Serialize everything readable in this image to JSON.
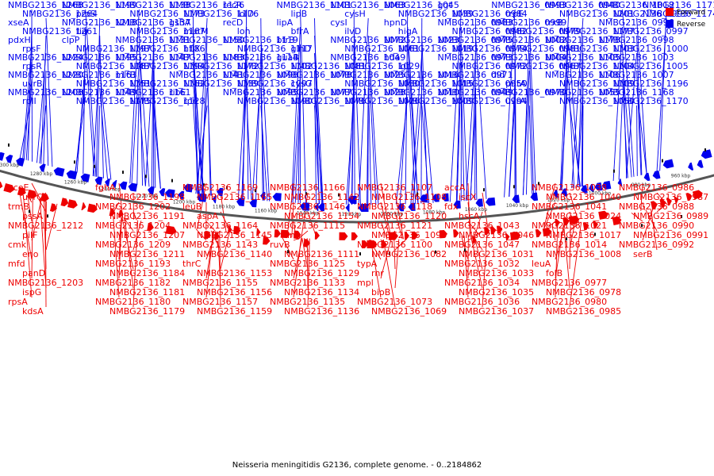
{
  "title": "Neisseria meningitidis G2136, complete genome. - 0..2184862",
  "colors": {
    "forward": "#ee0000",
    "reverse": "#0000ee",
    "backbone": "#555555"
  },
  "legend": [
    {
      "key": "forward",
      "label": "Forward"
    },
    {
      "key": "reverse",
      "label": "Reverse"
    }
  ],
  "ticks": [
    "1300 kbp",
    "1280 kbp",
    "1260 kbp",
    "1240 kbp",
    "1220 kbp",
    "1200 kbp",
    "1180 kbp",
    "1160 kbp",
    "1140 kbp",
    "1120 kbp",
    "1100 kbp",
    "1080 kbp",
    "1060 kbp",
    "1040 kbp",
    "1020 kbp",
    "1000 kbp",
    "980 kbp",
    "960 kbp"
  ],
  "reverse_labels": [
    "NMBG2136_1268",
    "NMBG2136_1264",
    "xseA",
    "NMBG2136_1261",
    "pdxH",
    "rpsF",
    "NMBG2136_1224",
    "rpsR",
    "NMBG2136_1220",
    "uvrB",
    "NMBG2136_1208",
    "rplI",
    "NMBG2136_1199",
    "proS",
    "NMBG2136_1218",
    "tig",
    "clpP",
    "NMBG2136_1197",
    "NMBG2136_1195",
    "NMBG2136_1187",
    "NMBG2136_1163",
    "NMBG2136_1151",
    "NMBG2136_1149",
    "NMBG2136_1175",
    "NMBG2136_1138",
    "NMBG2136_1173",
    "NMBG2136_1137",
    "NMBG2136_1167",
    "NMBG2136_1131",
    "NMBG2136_1186",
    "NMBG2136_1147",
    "NMBG2136_1194",
    "mltB",
    "NMBG2136_1162",
    "NMBG2136_1161",
    "NMBG2136_1128",
    "NMBG2136_1126",
    "NMBG2136_1176",
    "gshA",
    "mutM",
    "NMBG2136_1150",
    "hflX",
    "NMBG2136_1183",
    "NMBG2136_1172",
    "NMBG2136_1141",
    "NMBG2136_1139",
    "ribE",
    "rpe",
    "recR",
    "lolD",
    "recD",
    "lon",
    "NMBG2136_1119",
    "NMBG2136_1117",
    "NMBG2136_1114",
    "NMBG2136_1102",
    "NMBG2136_1098",
    "NMBG2136_1097",
    "NMBG2136_1095",
    "NMBG2136_1090",
    "NMBG2136_1101",
    "lipB",
    "lipA",
    "bfrA",
    "bfrB",
    "glnD",
    "guaB",
    "NMBG2136_1081",
    "NMBG2136_1078",
    "cysG",
    "NMBG2136_1077",
    "NMBG2136_1076",
    "NMBG2136_1063",
    "cysH",
    "cysI",
    "ilvD",
    "NMBG2136_1072",
    "NMBG2136_1061",
    "NMBG2136_1049",
    "NMBG2136_1029",
    "NMBG2136_1025",
    "NMBG2136_1030",
    "NMBG2136_1028",
    "NMBG2136_1026",
    "NMBG2136_1045",
    "NMBG2136_1039",
    "hpnD",
    "higA",
    "NMBG2136_1023",
    "NMBG2136_1019",
    "hda",
    "lgt",
    "NMBG2136_1016",
    "NMBG2136_1015",
    "NMBG2136_1010",
    "NMBG2136_1009",
    "ggt",
    "NMBG2136_0984",
    "NMBG2136_0983",
    "NMBG2136_0982",
    "NMBG2136_0975",
    "NMBG2136_0974",
    "NMBG2136_0973",
    "NMBG2136_0972",
    "NMBG2136_0971",
    "NMBG2136_0950",
    "NMBG2136_0949",
    "NMBG2136_0994",
    "NMBG2136_0993",
    "trpE",
    "NMBG2136_0999",
    "NMBG2136_0979",
    "NMBG2136_1002",
    "NMBG2136_0981",
    "NMBG2136_1004",
    "NMBG2136_0967",
    "dld",
    "pntA",
    "NMBG2136_0970",
    "uvrA",
    "NMBG2136_0940",
    "NMBG2136_1201",
    "trxB",
    "NMBG2136_1177",
    "NMBG2136_1178",
    "NMBG2136_1103",
    "NMBG2136_1105",
    "NMBG2136_1104",
    "NMBG2136_1106",
    "NMBG2136_1109",
    "NMBG2136_1055",
    "NMBG2136_1050",
    "NMBG2136_1018",
    "NMBG2136_0995",
    "NMBG2136_0996",
    "NMBG2136_0997",
    "NMBG2136_0998",
    "NMBG2136_1000",
    "NMBG2136_1003",
    "NMBG2136_1005",
    "NMBG2136_1007",
    "NMBG2136_1196",
    "NMBG2136_1168",
    "NMBG2136_1170",
    "NMBG2136_1171",
    "NMBG2136_1174"
  ],
  "forward_labels": [
    "aceE",
    "uvrC",
    "trmB",
    "pssA",
    "NMBG2136_1212",
    "pilF",
    "cmk",
    "eno",
    "mfd",
    "panD",
    "NMBG2136_1203",
    "ispG",
    "rpsA",
    "kdsA",
    "fghA",
    "NMBG2136_1198",
    "NMBG2136_1202",
    "NMBG2136_1191",
    "NMBG2136_1204",
    "NMBG2136_1207",
    "NMBG2136_1209",
    "NMBG2136_1211",
    "NMBG2136_1193",
    "NMBG2136_1184",
    "NMBG2136_1182",
    "NMBG2136_1181",
    "NMBG2136_1180",
    "NMBG2136_1179",
    "NMBG2136_1169",
    "NMBG2136_1165",
    "leuB",
    "aspA",
    "NMBG2136_1164",
    "NMBG2136_1145",
    "NMBG2136_1143",
    "NMBG2136_1140",
    "thrC",
    "NMBG2136_1153",
    "NMBG2136_1155",
    "NMBG2136_1156",
    "NMBG2136_1157",
    "NMBG2136_1159",
    "NMBG2136_1166",
    "NMBG2136_1142",
    "NMBG2136_1146",
    "NMBG2136_1154",
    "NMBG2136_1115",
    "ung",
    "ruvB",
    "NMBG2136_1111",
    "NMBG2136_1125",
    "NMBG2136_1129",
    "NMBG2136_1133",
    "NMBG2136_1134",
    "NMBG2136_1135",
    "NMBG2136_1136",
    "NMBG2136_1107",
    "NMBG2136_1108",
    "NMBG2136_1118",
    "NMBG2136_1120",
    "NMBG2136_1121",
    "NMBG2136_1096",
    "NMBG2136_1100",
    "NMBG2136_1082",
    "typA",
    "rnr",
    "mpl",
    "bioB",
    "NMBG2136_1073",
    "NMBG2136_1069",
    "accA",
    "iscX",
    "fdx",
    "hscA",
    "NMBG2136_1043",
    "NMBG2136_1046",
    "NMBG2136_1047",
    "NMBG2136_1031",
    "NMBG2136_1032",
    "NMBG2136_1033",
    "NMBG2136_1034",
    "NMBG2136_1035",
    "NMBG2136_1036",
    "NMBG2136_1037",
    "NMBG2136_1038",
    "NMBG2136_1040",
    "NMBG2136_1041",
    "NMBG2136_1024",
    "NMBG2136_1021",
    "NMBG2136_1017",
    "NMBG2136_1014",
    "NMBG2136_1008",
    "leuA",
    "folB",
    "NMBG2136_0977",
    "NMBG2136_0978",
    "NMBG2136_0980",
    "NMBG2136_0985",
    "NMBG2136_0986",
    "NMBG2136_0987",
    "NMBG2136_0988",
    "NMBG2136_0989",
    "NMBG2136_0990",
    "NMBG2136_0991",
    "NMBG2136_0992",
    "serB"
  ]
}
